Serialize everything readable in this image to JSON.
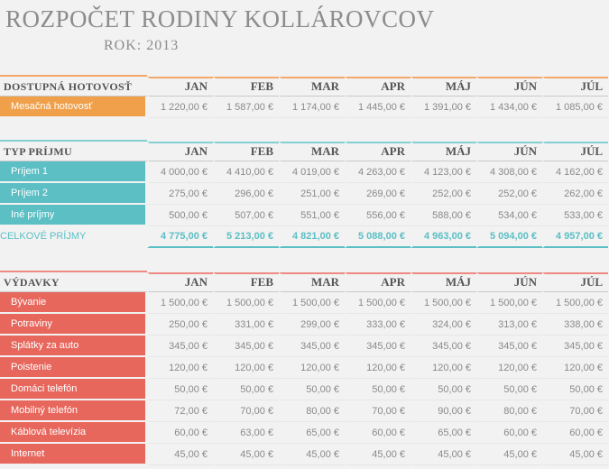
{
  "title": "ROZPOČET RODINY KOLLÁROVCOV",
  "year_label": "ROK: 2013",
  "months": [
    "JAN",
    "FEB",
    "MAR",
    "APR",
    "MÁJ",
    "JÚN",
    "JÚL"
  ],
  "colors": {
    "orange": "#f0a04b",
    "teal": "#5bbfc4",
    "red": "#e8675d"
  },
  "cash": {
    "header": "DOSTUPNÁ HOTOVOSŤ",
    "rows": [
      {
        "label": "Mesačná hotovosť",
        "values": [
          "1 220,00 €",
          "1 587,00 €",
          "1 174,00 €",
          "1 445,00 €",
          "1 391,00 €",
          "1 434,00 €",
          "1 085,00 €"
        ]
      }
    ]
  },
  "income": {
    "header": "TYP PRÍJMU",
    "rows": [
      {
        "label": "Príjem 1",
        "values": [
          "4 000,00 €",
          "4 410,00 €",
          "4 019,00 €",
          "4 263,00 €",
          "4 123,00 €",
          "4 308,00 €",
          "4 162,00 €"
        ]
      },
      {
        "label": "Príjem 2",
        "values": [
          "275,00 €",
          "296,00 €",
          "251,00 €",
          "269,00 €",
          "252,00 €",
          "252,00 €",
          "262,00 €"
        ]
      },
      {
        "label": "Iné príjmy",
        "values": [
          "500,00 €",
          "507,00 €",
          "551,00 €",
          "556,00 €",
          "588,00 €",
          "534,00 €",
          "533,00 €"
        ]
      }
    ],
    "total": {
      "label": "CELKOVÉ PRÍJMY",
      "values": [
        "4 775,00 €",
        "5 213,00 €",
        "4 821,00 €",
        "5 088,00 €",
        "4 963,00 €",
        "5 094,00 €",
        "4 957,00 €"
      ]
    }
  },
  "expenses": {
    "header": "VÝDAVKY",
    "rows": [
      {
        "label": "Bývanie",
        "values": [
          "1 500,00 €",
          "1 500,00 €",
          "1 500,00 €",
          "1 500,00 €",
          "1 500,00 €",
          "1 500,00 €",
          "1 500,00 €"
        ]
      },
      {
        "label": "Potraviny",
        "values": [
          "250,00 €",
          "331,00 €",
          "299,00 €",
          "333,00 €",
          "324,00 €",
          "313,00 €",
          "338,00 €"
        ]
      },
      {
        "label": "Splátky za auto",
        "values": [
          "345,00 €",
          "345,00 €",
          "345,00 €",
          "345,00 €",
          "345,00 €",
          "345,00 €",
          "345,00 €"
        ]
      },
      {
        "label": "Poistenie",
        "values": [
          "120,00 €",
          "120,00 €",
          "120,00 €",
          "120,00 €",
          "120,00 €",
          "120,00 €",
          "120,00 €"
        ]
      },
      {
        "label": "Domáci telefón",
        "values": [
          "50,00 €",
          "50,00 €",
          "50,00 €",
          "50,00 €",
          "50,00 €",
          "50,00 €",
          "50,00 €"
        ]
      },
      {
        "label": "Mobilný telefón",
        "values": [
          "72,00 €",
          "70,00 €",
          "80,00 €",
          "70,00 €",
          "90,00 €",
          "80,00 €",
          "70,00 €"
        ]
      },
      {
        "label": "Káblová televízia",
        "values": [
          "60,00 €",
          "63,00 €",
          "65,00 €",
          "60,00 €",
          "65,00 €",
          "60,00 €",
          "60,00 €"
        ]
      },
      {
        "label": "Internet",
        "values": [
          "45,00 €",
          "45,00 €",
          "45,00 €",
          "45,00 €",
          "45,00 €",
          "45,00 €",
          "45,00 €"
        ]
      }
    ]
  }
}
